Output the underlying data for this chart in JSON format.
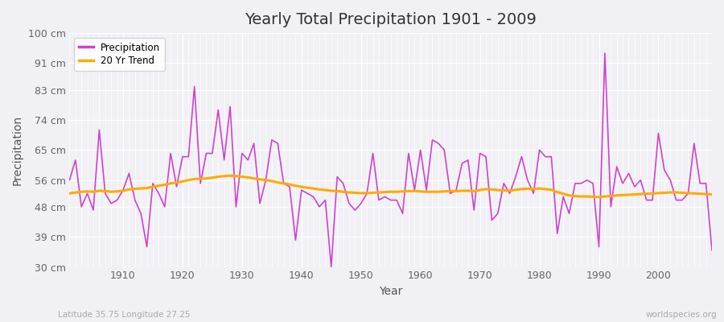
{
  "title": "Yearly Total Precipitation 1901 - 2009",
  "xlabel": "Year",
  "ylabel": "Precipitation",
  "subtitle_left": "Latitude 35.75 Longitude 27.25",
  "subtitle_right": "worldspecies.org",
  "line_color": "#cc44cc",
  "trend_color": "#ffaa00",
  "bg_color": "#f0f0f5",
  "plot_bg_color": "#f0f0f5",
  "grid_color": "#ffffff",
  "ylim": [
    30,
    100
  ],
  "xlim": [
    1901,
    2009
  ],
  "ytick_labels": [
    "30 cm",
    "39 cm",
    "48 cm",
    "56 cm",
    "65 cm",
    "74 cm",
    "83 cm",
    "91 cm",
    "100 cm"
  ],
  "ytick_values": [
    30,
    39,
    48,
    56,
    65,
    74,
    83,
    91,
    100
  ],
  "years": [
    1901,
    1902,
    1903,
    1904,
    1905,
    1906,
    1907,
    1908,
    1909,
    1910,
    1911,
    1912,
    1913,
    1914,
    1915,
    1916,
    1917,
    1918,
    1919,
    1920,
    1921,
    1922,
    1923,
    1924,
    1925,
    1926,
    1927,
    1928,
    1929,
    1930,
    1931,
    1932,
    1933,
    1934,
    1935,
    1936,
    1937,
    1938,
    1939,
    1940,
    1941,
    1942,
    1943,
    1944,
    1945,
    1946,
    1947,
    1948,
    1949,
    1950,
    1951,
    1952,
    1953,
    1954,
    1955,
    1956,
    1957,
    1958,
    1959,
    1960,
    1961,
    1962,
    1963,
    1964,
    1965,
    1966,
    1967,
    1968,
    1969,
    1970,
    1971,
    1972,
    1973,
    1974,
    1975,
    1976,
    1977,
    1978,
    1979,
    1980,
    1981,
    1982,
    1983,
    1984,
    1985,
    1986,
    1987,
    1988,
    1989,
    1990,
    1991,
    1992,
    1993,
    1994,
    1995,
    1996,
    1997,
    1998,
    1999,
    2000,
    2001,
    2002,
    2003,
    2004,
    2005,
    2006,
    2007,
    2008,
    2009
  ],
  "precipitation": [
    56,
    62,
    48,
    52,
    47,
    71,
    52,
    49,
    50,
    53,
    58,
    50,
    46,
    36,
    55,
    52,
    48,
    64,
    54,
    63,
    63,
    84,
    55,
    64,
    64,
    77,
    62,
    78,
    48,
    64,
    62,
    67,
    49,
    56,
    68,
    67,
    55,
    54,
    38,
    53,
    52,
    51,
    48,
    50,
    30,
    57,
    55,
    49,
    47,
    49,
    52,
    64,
    50,
    51,
    50,
    50,
    46,
    64,
    53,
    65,
    53,
    68,
    67,
    65,
    52,
    53,
    61,
    62,
    47,
    64,
    63,
    44,
    46,
    55,
    52,
    57,
    63,
    56,
    52,
    65,
    63,
    63,
    40,
    51,
    46,
    55,
    55,
    56,
    55,
    36,
    94,
    48,
    60,
    55,
    58,
    54,
    56,
    50,
    50,
    70,
    59,
    56,
    50,
    50,
    52,
    67,
    55,
    55,
    35
  ],
  "trend": [
    52.0,
    52.3,
    52.5,
    52.6,
    52.5,
    52.8,
    52.7,
    52.5,
    52.6,
    52.8,
    53.2,
    53.4,
    53.5,
    53.6,
    54.0,
    54.3,
    54.6,
    55.0,
    55.3,
    55.6,
    56.0,
    56.3,
    56.4,
    56.5,
    56.7,
    57.0,
    57.2,
    57.3,
    57.2,
    57.0,
    56.8,
    56.5,
    56.2,
    56.0,
    55.7,
    55.3,
    55.0,
    54.7,
    54.3,
    54.0,
    53.7,
    53.5,
    53.2,
    53.0,
    52.8,
    52.7,
    52.5,
    52.3,
    52.2,
    52.1,
    52.1,
    52.2,
    52.3,
    52.4,
    52.5,
    52.5,
    52.6,
    52.7,
    52.7,
    52.6,
    52.5,
    52.5,
    52.5,
    52.6,
    52.7,
    52.7,
    52.8,
    52.8,
    52.7,
    53.0,
    53.3,
    53.2,
    53.0,
    52.9,
    52.8,
    53.1,
    53.3,
    53.4,
    53.3,
    53.5,
    53.3,
    53.1,
    52.4,
    51.9,
    51.4,
    51.2,
    51.1,
    51.1,
    51.0,
    50.9,
    51.1,
    51.2,
    51.4,
    51.5,
    51.6,
    51.7,
    51.8,
    51.9,
    52.0,
    52.1,
    52.2,
    52.3,
    52.3,
    52.2,
    52.1,
    52.0,
    51.9,
    51.8,
    51.7
  ]
}
